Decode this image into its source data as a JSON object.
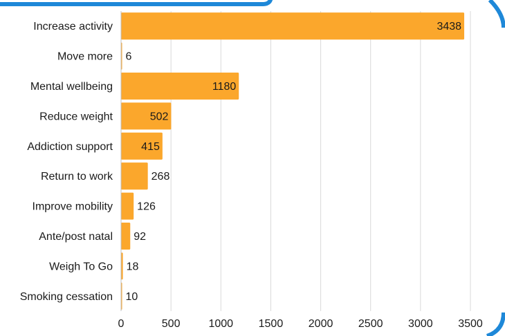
{
  "chart_data": {
    "type": "bar",
    "orientation": "horizontal",
    "categories": [
      "Increase activity",
      "Move more",
      "Mental wellbeing",
      "Reduce weight",
      "Addiction support",
      "Return to work",
      "Improve mobility",
      "Ante/post natal",
      "Weigh To Go",
      "Smoking cessation"
    ],
    "values": [
      3438,
      6,
      1180,
      502,
      415,
      268,
      126,
      92,
      18,
      10
    ],
    "value_labels": [
      "3438",
      "6",
      "1180",
      "502",
      "415",
      "268",
      "126",
      "92",
      "18",
      "10"
    ],
    "xticks": [
      "0",
      "500",
      "1000",
      "1500",
      "2000",
      "2500",
      "3000",
      "3500"
    ],
    "xlim": [
      0,
      3500
    ],
    "grid": "vertical",
    "legend": "none"
  },
  "colors": {
    "bar": "#FBA72C",
    "frame": "#1E88D8",
    "grid": "#D9D9D9",
    "text": "#1A1A1A"
  }
}
